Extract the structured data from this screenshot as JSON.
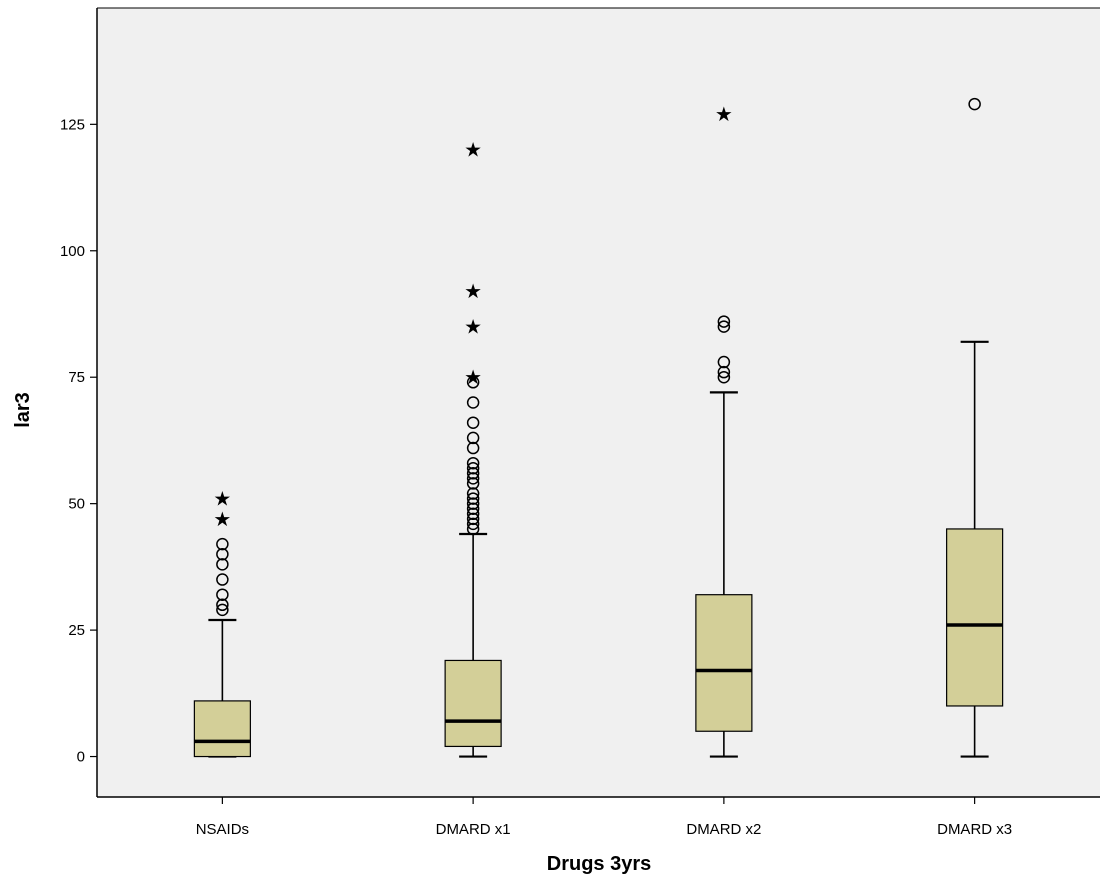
{
  "chart_data": {
    "type": "boxplot",
    "title": "",
    "xlabel": "Drugs 3yrs",
    "ylabel": "lar3",
    "ylim": [
      -8,
      148
    ],
    "yticks": [
      0,
      25,
      50,
      75,
      100,
      125
    ],
    "grid": false,
    "colors": {
      "plot_background": "#f0f0f0",
      "box_fill": "#d3cf98",
      "line": "#000000"
    },
    "categories": [
      "NSAIDs",
      "DMARD x1",
      "DMARD x2",
      "DMARD x3"
    ],
    "boxes": [
      {
        "min": 0,
        "q1": 0,
        "median": 3,
        "q3": 11,
        "max": 27,
        "outliers": [
          29,
          30,
          32,
          35,
          38,
          40,
          42
        ],
        "extremes": [
          47,
          51
        ]
      },
      {
        "min": 0,
        "q1": 2,
        "median": 7,
        "q3": 19,
        "max": 44,
        "outliers": [
          45,
          46,
          47,
          48,
          49,
          50,
          51,
          52,
          54,
          55,
          56,
          57,
          58,
          61,
          63,
          66,
          70,
          74
        ],
        "extremes": [
          75,
          85,
          92,
          120
        ]
      },
      {
        "min": 0,
        "q1": 5,
        "median": 17,
        "q3": 32,
        "max": 72,
        "outliers": [
          75,
          76,
          78,
          85,
          86
        ],
        "extremes": [
          127
        ]
      },
      {
        "min": 0,
        "q1": 10,
        "median": 26,
        "q3": 45,
        "max": 82,
        "outliers": [
          129
        ],
        "extremes": []
      }
    ]
  }
}
